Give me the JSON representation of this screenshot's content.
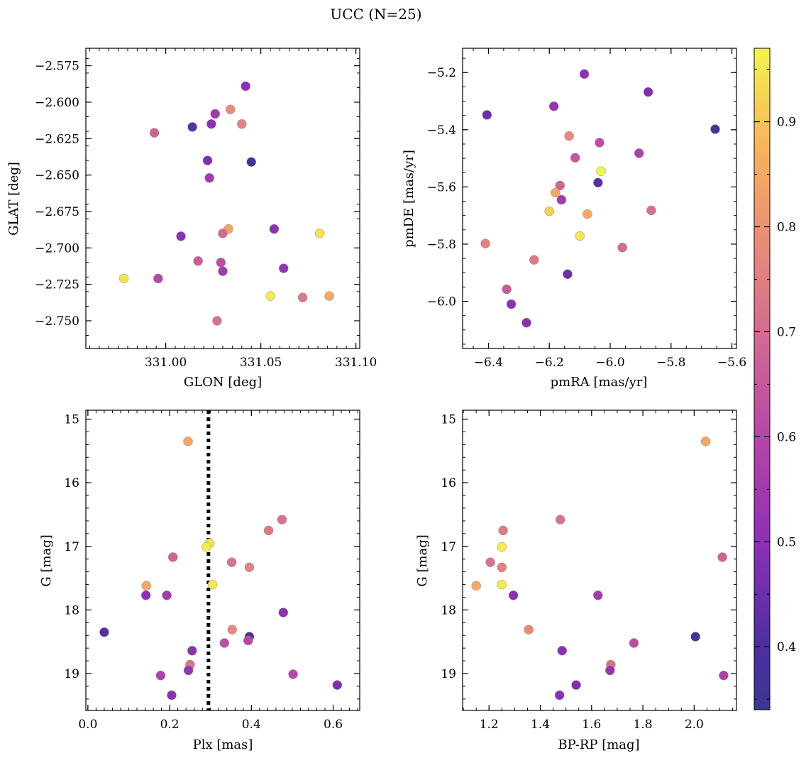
{
  "figure": {
    "title": "UCC (N=25)"
  },
  "colormap": {
    "name": "plasma",
    "range": [
      0.34,
      0.97
    ],
    "ticks": [
      0.4,
      0.5,
      0.6,
      0.7,
      0.8,
      0.9
    ],
    "tick_labels": [
      "0.4",
      "0.5",
      "0.6",
      "0.7",
      "0.8",
      "0.9"
    ]
  },
  "guide_line": {
    "panel": "plx_g",
    "x": 0.295,
    "style": "dotted",
    "color": "#000000"
  },
  "chart_data": [
    {
      "id": "glon_glat",
      "type": "scatter",
      "xlabel": "GLON [deg]",
      "ylabel": "GLAT [deg]",
      "xlim": [
        330.958,
        331.102
      ],
      "ylim": [
        -2.769,
        -2.563
      ],
      "xticks": [
        331.0,
        331.05,
        331.1
      ],
      "xtick_labels": [
        "331.00",
        "331.05",
        "331.10"
      ],
      "yticks": [
        -2.575,
        -2.6,
        -2.625,
        -2.65,
        -2.675,
        -2.7,
        -2.725,
        -2.75
      ],
      "ytick_labels": [
        "−2.575",
        "−2.600",
        "−2.625",
        "−2.650",
        "−2.675",
        "−2.700",
        "−2.725",
        "−2.750"
      ],
      "points": [
        {
          "x": 331.042,
          "y": -2.589,
          "c": 0.5
        },
        {
          "x": 331.034,
          "y": -2.605,
          "c": 0.78
        },
        {
          "x": 331.026,
          "y": -2.608,
          "c": 0.55
        },
        {
          "x": 331.024,
          "y": -2.615,
          "c": 0.5
        },
        {
          "x": 331.04,
          "y": -2.615,
          "c": 0.76
        },
        {
          "x": 331.014,
          "y": -2.617,
          "c": 0.42
        },
        {
          "x": 330.994,
          "y": -2.621,
          "c": 0.68
        },
        {
          "x": 331.022,
          "y": -2.64,
          "c": 0.48
        },
        {
          "x": 331.045,
          "y": -2.641,
          "c": 0.36
        },
        {
          "x": 331.023,
          "y": -2.652,
          "c": 0.55
        },
        {
          "x": 331.033,
          "y": -2.687,
          "c": 0.84
        },
        {
          "x": 331.057,
          "y": -2.687,
          "c": 0.5
        },
        {
          "x": 331.081,
          "y": -2.69,
          "c": 0.95
        },
        {
          "x": 331.03,
          "y": -2.69,
          "c": 0.7
        },
        {
          "x": 331.008,
          "y": -2.692,
          "c": 0.5
        },
        {
          "x": 331.017,
          "y": -2.709,
          "c": 0.66
        },
        {
          "x": 331.029,
          "y": -2.71,
          "c": 0.62
        },
        {
          "x": 331.062,
          "y": -2.714,
          "c": 0.52
        },
        {
          "x": 331.03,
          "y": -2.716,
          "c": 0.55
        },
        {
          "x": 330.978,
          "y": -2.721,
          "c": 0.95
        },
        {
          "x": 330.996,
          "y": -2.721,
          "c": 0.6
        },
        {
          "x": 331.055,
          "y": -2.733,
          "c": 0.96
        },
        {
          "x": 331.072,
          "y": -2.734,
          "c": 0.74
        },
        {
          "x": 331.086,
          "y": -2.733,
          "c": 0.85
        },
        {
          "x": 331.027,
          "y": -2.75,
          "c": 0.72
        }
      ]
    },
    {
      "id": "pmra_pmde",
      "type": "scatter",
      "xlabel": "pmRA [mas/yr]",
      "ylabel": "pmDE [mas/yr]",
      "xlim": [
        -6.485,
        -5.585
      ],
      "ylim": [
        -6.165,
        -5.115
      ],
      "xticks": [
        -6.4,
        -6.2,
        -6.0,
        -5.8,
        -5.6
      ],
      "xtick_labels": [
        "−6.4",
        "−6.2",
        "−6.0",
        "−5.8",
        "−5.6"
      ],
      "yticks": [
        -5.2,
        -5.4,
        -5.6,
        -5.8,
        -6.0
      ],
      "ytick_labels": [
        "−5.2",
        "−5.4",
        "−5.6",
        "−5.8",
        "−6.0"
      ],
      "points": [
        {
          "x": -6.085,
          "y": -5.205,
          "c": 0.5
        },
        {
          "x": -5.875,
          "y": -5.268,
          "c": 0.48
        },
        {
          "x": -6.185,
          "y": -5.318,
          "c": 0.52
        },
        {
          "x": -6.405,
          "y": -5.348,
          "c": 0.45
        },
        {
          "x": -5.655,
          "y": -5.398,
          "c": 0.37
        },
        {
          "x": -6.135,
          "y": -5.422,
          "c": 0.78
        },
        {
          "x": -6.035,
          "y": -5.445,
          "c": 0.62
        },
        {
          "x": -5.905,
          "y": -5.482,
          "c": 0.58
        },
        {
          "x": -6.115,
          "y": -5.498,
          "c": 0.65
        },
        {
          "x": -6.03,
          "y": -5.545,
          "c": 0.97
        },
        {
          "x": -6.04,
          "y": -5.585,
          "c": 0.42
        },
        {
          "x": -6.165,
          "y": -5.595,
          "c": 0.68
        },
        {
          "x": -6.18,
          "y": -5.62,
          "c": 0.85
        },
        {
          "x": -6.16,
          "y": -5.645,
          "c": 0.55
        },
        {
          "x": -6.2,
          "y": -5.685,
          "c": 0.92
        },
        {
          "x": -6.075,
          "y": -5.695,
          "c": 0.85
        },
        {
          "x": -5.865,
          "y": -5.682,
          "c": 0.72
        },
        {
          "x": -6.1,
          "y": -5.772,
          "c": 0.95
        },
        {
          "x": -6.41,
          "y": -5.798,
          "c": 0.76
        },
        {
          "x": -5.96,
          "y": -5.812,
          "c": 0.7
        },
        {
          "x": -6.25,
          "y": -5.855,
          "c": 0.74
        },
        {
          "x": -6.14,
          "y": -5.905,
          "c": 0.45
        },
        {
          "x": -6.34,
          "y": -5.958,
          "c": 0.66
        },
        {
          "x": -6.325,
          "y": -6.01,
          "c": 0.5
        },
        {
          "x": -6.275,
          "y": -6.075,
          "c": 0.5
        }
      ]
    },
    {
      "id": "plx_g",
      "type": "scatter",
      "xlabel": "Plx [mas]",
      "ylabel": "G [mag]",
      "xlim": [
        -0.005,
        0.665
      ],
      "ylim": [
        19.58,
        14.86
      ],
      "y_inverted": true,
      "xticks": [
        0.0,
        0.2,
        0.4,
        0.6
      ],
      "xtick_labels": [
        "0.0",
        "0.2",
        "0.4",
        "0.6"
      ],
      "yticks": [
        15,
        16,
        17,
        18,
        19
      ],
      "ytick_labels": [
        "15",
        "16",
        "17",
        "18",
        "19"
      ],
      "points": [
        {
          "x": 0.245,
          "y": 15.35,
          "c": 0.85
        },
        {
          "x": 0.475,
          "y": 16.58,
          "c": 0.72
        },
        {
          "x": 0.442,
          "y": 16.75,
          "c": 0.74
        },
        {
          "x": 0.298,
          "y": 16.95,
          "c": 0.95
        },
        {
          "x": 0.29,
          "y": 17.01,
          "c": 0.96
        },
        {
          "x": 0.208,
          "y": 17.17,
          "c": 0.68
        },
        {
          "x": 0.352,
          "y": 17.25,
          "c": 0.72
        },
        {
          "x": 0.395,
          "y": 17.33,
          "c": 0.76
        },
        {
          "x": 0.305,
          "y": 17.6,
          "c": 0.96
        },
        {
          "x": 0.143,
          "y": 17.62,
          "c": 0.85
        },
        {
          "x": 0.142,
          "y": 17.77,
          "c": 0.5
        },
        {
          "x": 0.193,
          "y": 17.77,
          "c": 0.55
        },
        {
          "x": 0.478,
          "y": 18.04,
          "c": 0.5
        },
        {
          "x": 0.04,
          "y": 18.35,
          "c": 0.42
        },
        {
          "x": 0.353,
          "y": 18.31,
          "c": 0.78
        },
        {
          "x": 0.395,
          "y": 18.42,
          "c": 0.38
        },
        {
          "x": 0.392,
          "y": 18.48,
          "c": 0.6
        },
        {
          "x": 0.334,
          "y": 18.52,
          "c": 0.62
        },
        {
          "x": 0.255,
          "y": 18.64,
          "c": 0.5
        },
        {
          "x": 0.25,
          "y": 18.86,
          "c": 0.72
        },
        {
          "x": 0.246,
          "y": 18.95,
          "c": 0.52
        },
        {
          "x": 0.178,
          "y": 19.03,
          "c": 0.58
        },
        {
          "x": 0.502,
          "y": 19.01,
          "c": 0.6
        },
        {
          "x": 0.205,
          "y": 19.34,
          "c": 0.5
        },
        {
          "x": 0.61,
          "y": 19.18,
          "c": 0.48
        }
      ]
    },
    {
      "id": "bprp_g",
      "type": "scatter",
      "xlabel": "BP-RP [mag]",
      "ylabel": "G [mag]",
      "xlim": [
        1.097,
        2.165
      ],
      "ylim": [
        19.58,
        14.86
      ],
      "y_inverted": true,
      "xticks": [
        1.2,
        1.4,
        1.6,
        1.8,
        2.0
      ],
      "xtick_labels": [
        "1.2",
        "1.4",
        "1.6",
        "1.8",
        "2.0"
      ],
      "yticks": [
        15,
        16,
        17,
        18,
        19
      ],
      "ytick_labels": [
        "15",
        "16",
        "17",
        "18",
        "19"
      ],
      "points": [
        {
          "x": 2.045,
          "y": 15.35,
          "c": 0.85
        },
        {
          "x": 1.478,
          "y": 16.58,
          "c": 0.72
        },
        {
          "x": 1.255,
          "y": 16.75,
          "c": 0.74
        },
        {
          "x": 1.25,
          "y": 17.01,
          "c": 0.96
        },
        {
          "x": 2.11,
          "y": 17.17,
          "c": 0.68
        },
        {
          "x": 1.205,
          "y": 17.25,
          "c": 0.72
        },
        {
          "x": 1.25,
          "y": 17.33,
          "c": 0.76
        },
        {
          "x": 1.15,
          "y": 17.62,
          "c": 0.85
        },
        {
          "x": 1.25,
          "y": 17.6,
          "c": 0.96
        },
        {
          "x": 1.295,
          "y": 17.77,
          "c": 0.5
        },
        {
          "x": 1.625,
          "y": 17.77,
          "c": 0.55
        },
        {
          "x": 1.355,
          "y": 18.31,
          "c": 0.78
        },
        {
          "x": 2.005,
          "y": 18.42,
          "c": 0.38
        },
        {
          "x": 1.765,
          "y": 18.52,
          "c": 0.62
        },
        {
          "x": 1.485,
          "y": 18.64,
          "c": 0.5
        },
        {
          "x": 1.675,
          "y": 18.86,
          "c": 0.72
        },
        {
          "x": 1.672,
          "y": 18.95,
          "c": 0.52
        },
        {
          "x": 2.115,
          "y": 19.03,
          "c": 0.58
        },
        {
          "x": 1.54,
          "y": 19.18,
          "c": 0.48
        },
        {
          "x": 1.475,
          "y": 19.34,
          "c": 0.5
        }
      ]
    }
  ]
}
